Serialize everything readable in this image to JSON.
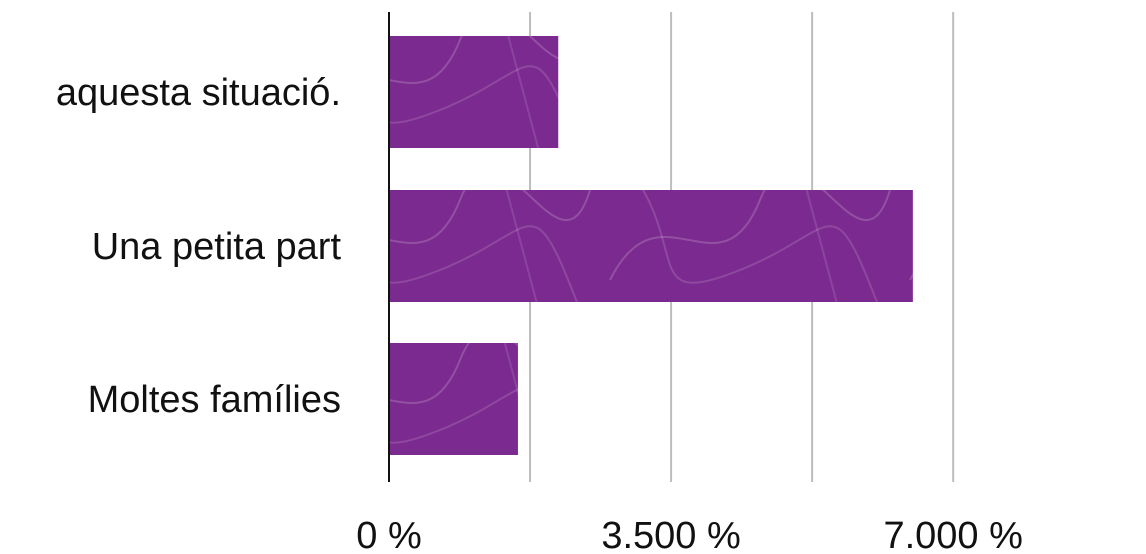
{
  "chart_data": {
    "type": "bar",
    "orientation": "horizontal",
    "categories": [
      "aquesta situació.",
      "Una petita part",
      "Moltes famílies"
    ],
    "values": [
      2100,
      6500,
      1600
    ],
    "xlim": [
      0,
      8400
    ],
    "x_ticks": [
      {
        "value": 0,
        "label": "0 %"
      },
      {
        "value": 3500,
        "label": "3.500 %"
      },
      {
        "value": 7000,
        "label": "7.000 %"
      }
    ],
    "gridlines": [
      1750,
      3500,
      5250,
      7000
    ],
    "grid": true,
    "legend": "none",
    "bar_color": "#7b2a8f",
    "gridline_color": "#bdbdbd",
    "axis_color": "#111111"
  }
}
